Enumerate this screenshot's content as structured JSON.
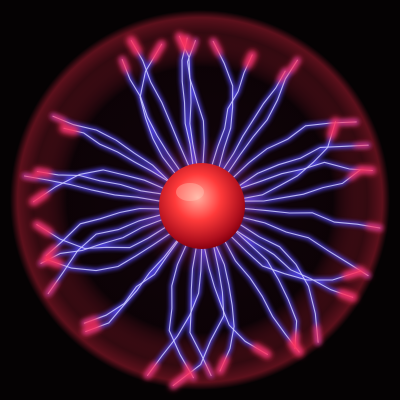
{
  "image": {
    "subject": "plasma-ball",
    "colors": {
      "background": "#050203",
      "glass_glow": "#ff2a4a",
      "filament_core": "#cfd0ff",
      "filament_outer": "#5a4cff",
      "filament_tip": "#ff2f55",
      "electrode_core": "#ffb0a0",
      "electrode_mid": "#ff3a3a",
      "electrode_edge": "#8a0010"
    }
  }
}
